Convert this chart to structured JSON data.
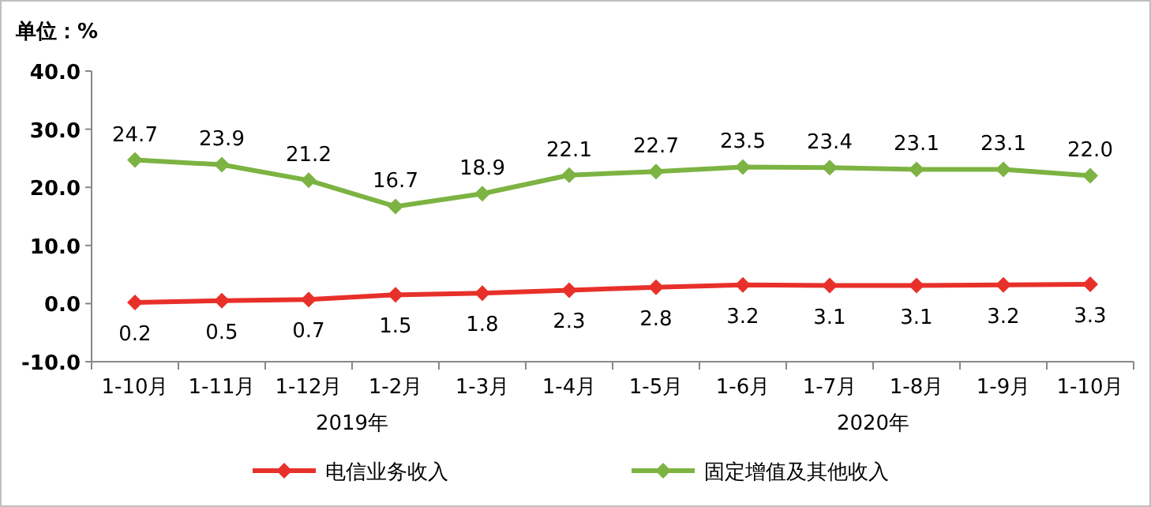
{
  "chart_data": {
    "type": "line",
    "ylabel": "单位：%",
    "categories": [
      "1-10月",
      "1-11月",
      "1-12月",
      "1-2月",
      "1-3月",
      "1-4月",
      "1-5月",
      "1-6月",
      "1-7月",
      "1-8月",
      "1-9月",
      "1-10月"
    ],
    "series": [
      {
        "name": "电信业务收入",
        "color": "#e8302a",
        "values": [
          0.2,
          0.5,
          0.7,
          1.5,
          1.8,
          2.3,
          2.8,
          3.2,
          3.1,
          3.1,
          3.2,
          3.3
        ],
        "value_labels": [
          "0.2",
          "0.5",
          "0.7",
          "1.5",
          "1.8",
          "2.3",
          "2.8",
          "3.2",
          "3.1",
          "3.1",
          "3.2",
          "3.3"
        ]
      },
      {
        "name": "固定增值及其他收入",
        "color": "#7cb342",
        "values": [
          24.7,
          23.9,
          21.2,
          16.7,
          18.9,
          22.1,
          22.7,
          23.5,
          23.4,
          23.1,
          23.1,
          22.0
        ],
        "value_labels": [
          "24.7",
          "23.9",
          "21.2",
          "16.7",
          "18.9",
          "22.1",
          "22.7",
          "23.5",
          "23.4",
          "23.1",
          "23.1",
          "22.0"
        ]
      }
    ],
    "ylim": [
      -10,
      40
    ],
    "yticks": [
      {
        "value": -10,
        "label": "-10.0"
      },
      {
        "value": 0,
        "label": "0.0"
      },
      {
        "value": 10,
        "label": "10.0"
      },
      {
        "value": 20,
        "label": "20.0"
      },
      {
        "value": 30,
        "label": "30.0"
      },
      {
        "value": 40,
        "label": "40.0"
      }
    ],
    "annotations": [
      "2019年",
      "2020年"
    ],
    "marker": "diamond",
    "line_style": "solid",
    "grid": false,
    "legend": "bottom"
  }
}
